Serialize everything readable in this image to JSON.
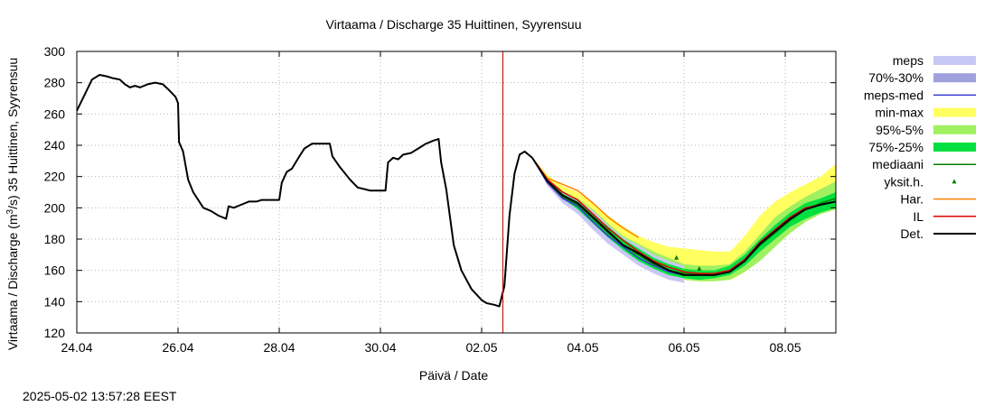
{
  "chart_data": {
    "type": "line",
    "title": "Virtaama / Discharge  35 Huittinen, Syyrensuu",
    "xlabel": "Päivä / Date",
    "ylabel": "Virtaama / Discharge (m³/s)  35 Huittinen, Syyrensuu",
    "ylabel_parts": {
      "pre": "Virtaama / Discharge (m",
      "sup": "3",
      "post": "/s)  35 Huittinen, Syyrensuu"
    },
    "timestamp": "2025-05-02 13:57:28 EEST",
    "x_unit": "days from 24.04",
    "xlim": [
      0,
      15
    ],
    "ylim": [
      120,
      300
    ],
    "grid": true,
    "legend_position": "right",
    "x_ticks": [
      {
        "x": 0,
        "label": "24.04"
      },
      {
        "x": 2,
        "label": "26.04"
      },
      {
        "x": 4,
        "label": "28.04"
      },
      {
        "x": 6,
        "label": "30.04"
      },
      {
        "x": 8,
        "label": "02.05"
      },
      {
        "x": 10,
        "label": "04.05"
      },
      {
        "x": 12,
        "label": "06.05"
      },
      {
        "x": 14,
        "label": "08.05"
      }
    ],
    "y_ticks": [
      120,
      140,
      160,
      180,
      200,
      220,
      240,
      260,
      280,
      300
    ],
    "forecast_start_x": 8.42,
    "colors": {
      "meps": "#c8c8f5",
      "p70_30": "#a0a0dc",
      "meps_med": "#3a3ad0",
      "minmax": "#ffff60",
      "p95_5": "#a0f060",
      "p75_25": "#00e040",
      "median": "#008000",
      "yksit": "#008000",
      "har": "#ff8000",
      "il": "#e00000",
      "det": "#000000",
      "now_line": "#c00000",
      "grid": "#b4b4b4"
    },
    "legend": [
      {
        "key": "meps",
        "label": "meps",
        "kind": "fill"
      },
      {
        "key": "p70_30",
        "label": "70%-30%",
        "kind": "fill"
      },
      {
        "key": "meps_med",
        "label": "meps-med",
        "kind": "line"
      },
      {
        "key": "minmax",
        "label": "min-max",
        "kind": "fill"
      },
      {
        "key": "p95_5",
        "label": "95%-5%",
        "kind": "fill"
      },
      {
        "key": "p75_25",
        "label": "75%-25%",
        "kind": "fill"
      },
      {
        "key": "median",
        "label": "mediaani",
        "kind": "line"
      },
      {
        "key": "yksit",
        "label": "yksit.h.",
        "kind": "point"
      },
      {
        "key": "har",
        "label": "Har.",
        "kind": "line"
      },
      {
        "key": "il",
        "label": "IL",
        "kind": "line"
      },
      {
        "key": "det",
        "label": "Det.",
        "kind": "line"
      }
    ],
    "series": {
      "det_observed": [
        [
          0,
          262
        ],
        [
          0.15,
          272
        ],
        [
          0.3,
          282
        ],
        [
          0.45,
          285
        ],
        [
          0.6,
          284
        ],
        [
          0.7,
          283
        ],
        [
          0.85,
          282
        ],
        [
          0.95,
          279
        ],
        [
          1.05,
          277
        ],
        [
          1.15,
          278
        ],
        [
          1.25,
          277
        ],
        [
          1.4,
          279
        ],
        [
          1.55,
          280
        ],
        [
          1.7,
          279
        ],
        [
          1.8,
          276
        ],
        [
          1.95,
          271
        ],
        [
          2.0,
          267
        ],
        [
          2.02,
          242
        ],
        [
          2.1,
          236
        ],
        [
          2.2,
          218
        ],
        [
          2.3,
          210
        ],
        [
          2.5,
          200
        ],
        [
          2.65,
          198
        ],
        [
          2.8,
          195
        ],
        [
          2.95,
          193
        ],
        [
          3.0,
          201
        ],
        [
          3.1,
          200
        ],
        [
          3.25,
          202
        ],
        [
          3.4,
          204
        ],
        [
          3.55,
          204
        ],
        [
          3.65,
          205
        ],
        [
          4.0,
          205
        ],
        [
          4.05,
          216
        ],
        [
          4.15,
          223
        ],
        [
          4.25,
          225
        ],
        [
          4.4,
          233
        ],
        [
          4.5,
          238
        ],
        [
          4.65,
          241
        ],
        [
          5.0,
          241
        ],
        [
          5.05,
          233
        ],
        [
          5.2,
          226
        ],
        [
          5.4,
          218
        ],
        [
          5.55,
          213
        ],
        [
          5.8,
          211
        ],
        [
          6.1,
          211
        ],
        [
          6.15,
          229
        ],
        [
          6.25,
          232
        ],
        [
          6.35,
          231
        ],
        [
          6.45,
          234
        ],
        [
          6.6,
          235
        ],
        [
          6.75,
          238
        ],
        [
          6.9,
          241
        ],
        [
          7.05,
          243
        ],
        [
          7.15,
          244
        ],
        [
          7.2,
          229
        ],
        [
          7.3,
          212
        ],
        [
          7.45,
          176
        ],
        [
          7.6,
          160
        ],
        [
          7.8,
          148
        ],
        [
          8.0,
          141
        ],
        [
          8.1,
          139
        ],
        [
          8.25,
          138
        ],
        [
          8.35,
          137
        ],
        [
          8.45,
          150
        ],
        [
          8.55,
          195
        ],
        [
          8.65,
          222
        ],
        [
          8.75,
          234
        ],
        [
          8.85,
          236
        ],
        [
          9.0,
          232
        ]
      ],
      "minmax": [
        [
          9.0,
          232,
          232
        ],
        [
          9.3,
          216,
          221
        ],
        [
          9.6,
          207,
          214
        ],
        [
          9.9,
          200,
          210
        ],
        [
          10.2,
          190,
          203
        ],
        [
          10.5,
          180,
          195
        ],
        [
          10.8,
          172,
          188
        ],
        [
          11.1,
          166,
          182
        ],
        [
          11.4,
          161,
          178
        ],
        [
          11.7,
          157,
          175
        ],
        [
          12.0,
          154,
          174
        ],
        [
          12.3,
          153,
          173
        ],
        [
          12.6,
          153,
          172
        ],
        [
          12.9,
          154,
          172
        ],
        [
          13.0,
          155,
          175
        ],
        [
          13.2,
          159,
          182
        ],
        [
          13.5,
          167,
          195
        ],
        [
          13.8,
          177,
          204
        ],
        [
          14.1,
          186,
          210
        ],
        [
          14.4,
          193,
          215
        ],
        [
          14.7,
          197,
          220
        ],
        [
          15.0,
          200,
          228
        ]
      ],
      "p95_5": [
        [
          9.0,
          232,
          232
        ],
        [
          9.3,
          215,
          219
        ],
        [
          9.6,
          205,
          211
        ],
        [
          9.9,
          198,
          206
        ],
        [
          10.2,
          188,
          199
        ],
        [
          10.5,
          178,
          190
        ],
        [
          10.8,
          170,
          182
        ],
        [
          11.1,
          164,
          177
        ],
        [
          11.4,
          159,
          172
        ],
        [
          11.7,
          156,
          168
        ],
        [
          12.0,
          154,
          164
        ],
        [
          12.3,
          153,
          163
        ],
        [
          12.6,
          153,
          163
        ],
        [
          12.9,
          154,
          164
        ],
        [
          13.2,
          159,
          172
        ],
        [
          13.5,
          166,
          183
        ],
        [
          13.8,
          175,
          194
        ],
        [
          14.1,
          184,
          201
        ],
        [
          14.4,
          191,
          207
        ],
        [
          14.7,
          196,
          212
        ],
        [
          15.0,
          199,
          217
        ]
      ],
      "p75_25": [
        [
          9.0,
          232,
          232
        ],
        [
          9.3,
          216,
          218
        ],
        [
          9.6,
          206,
          209
        ],
        [
          9.9,
          199,
          204
        ],
        [
          10.2,
          190,
          196
        ],
        [
          10.5,
          181,
          188
        ],
        [
          10.8,
          173,
          180
        ],
        [
          11.1,
          166,
          174
        ],
        [
          11.4,
          161,
          168
        ],
        [
          11.7,
          157,
          164
        ],
        [
          12.0,
          155,
          161
        ],
        [
          12.3,
          154,
          160
        ],
        [
          12.6,
          155,
          160
        ],
        [
          12.9,
          157,
          163
        ],
        [
          13.2,
          163,
          170
        ],
        [
          13.5,
          172,
          180
        ],
        [
          13.8,
          180,
          189
        ],
        [
          14.1,
          188,
          197
        ],
        [
          14.4,
          193,
          203
        ],
        [
          14.7,
          197,
          206
        ],
        [
          15.0,
          200,
          210
        ]
      ],
      "meps": [
        [
          9.0,
          232,
          232
        ],
        [
          9.3,
          214,
          219
        ],
        [
          9.6,
          203,
          210
        ],
        [
          9.9,
          196,
          205
        ],
        [
          10.2,
          186,
          198
        ],
        [
          10.5,
          177,
          189
        ],
        [
          10.8,
          170,
          181
        ],
        [
          11.1,
          163,
          176
        ],
        [
          11.4,
          158,
          170
        ],
        [
          11.7,
          154,
          166
        ],
        [
          12.0,
          152,
          163
        ]
      ],
      "median": [
        [
          9.0,
          232
        ],
        [
          9.3,
          217
        ],
        [
          9.6,
          207
        ],
        [
          9.9,
          202
        ],
        [
          10.2,
          193
        ],
        [
          10.5,
          184
        ],
        [
          10.8,
          176
        ],
        [
          11.1,
          170
        ],
        [
          11.4,
          164
        ],
        [
          11.7,
          160
        ],
        [
          12.0,
          158
        ],
        [
          12.3,
          157
        ],
        [
          12.6,
          157
        ],
        [
          12.9,
          160
        ],
        [
          13.2,
          166
        ],
        [
          13.5,
          176
        ],
        [
          13.8,
          184
        ],
        [
          14.1,
          192
        ],
        [
          14.4,
          199
        ],
        [
          14.7,
          203
        ],
        [
          15.0,
          206
        ]
      ],
      "meps_med": [
        [
          9.0,
          232
        ],
        [
          9.3,
          216
        ],
        [
          9.6,
          206
        ],
        [
          9.9,
          201
        ],
        [
          10.2,
          191
        ],
        [
          10.5,
          182
        ],
        [
          10.8,
          175
        ],
        [
          11.1,
          168
        ],
        [
          11.4,
          163
        ],
        [
          11.7,
          159
        ],
        [
          12.0,
          157
        ]
      ],
      "det_forecast": [
        [
          9.0,
          232
        ],
        [
          9.3,
          217
        ],
        [
          9.6,
          208
        ],
        [
          9.9,
          203
        ],
        [
          10.2,
          194
        ],
        [
          10.5,
          185
        ],
        [
          10.8,
          176
        ],
        [
          11.1,
          171
        ],
        [
          11.4,
          165
        ],
        [
          11.7,
          160
        ],
        [
          12.0,
          157
        ],
        [
          12.3,
          157
        ],
        [
          12.6,
          157
        ],
        [
          12.9,
          159
        ],
        [
          13.2,
          166
        ],
        [
          13.5,
          177
        ],
        [
          13.8,
          185
        ],
        [
          14.1,
          193
        ],
        [
          14.4,
          199
        ],
        [
          14.7,
          202
        ],
        [
          15.0,
          204
        ]
      ],
      "il": [
        [
          9.0,
          232
        ],
        [
          9.3,
          218
        ],
        [
          9.6,
          210
        ],
        [
          9.9,
          205
        ],
        [
          10.2,
          196
        ],
        [
          10.5,
          187
        ],
        [
          10.8,
          179
        ],
        [
          11.1,
          172
        ],
        [
          11.4,
          166
        ],
        [
          11.7,
          162
        ],
        [
          12.0,
          159
        ],
        [
          12.3,
          158
        ],
        [
          12.6,
          158
        ],
        [
          12.9,
          160
        ],
        [
          13.2,
          167
        ],
        [
          13.5,
          178
        ],
        [
          13.8,
          186
        ],
        [
          14.1,
          194
        ],
        [
          14.4,
          200
        ],
        [
          14.7,
          202
        ],
        [
          15.0,
          204
        ]
      ],
      "har": [
        [
          9.0,
          232
        ],
        [
          9.3,
          219
        ],
        [
          9.6,
          215
        ],
        [
          9.9,
          211
        ],
        [
          10.2,
          203
        ],
        [
          10.5,
          194
        ],
        [
          10.8,
          187
        ],
        [
          11.1,
          181
        ]
      ],
      "yksit": [
        [
          11.85,
          168
        ],
        [
          12.3,
          161
        ]
      ]
    }
  }
}
